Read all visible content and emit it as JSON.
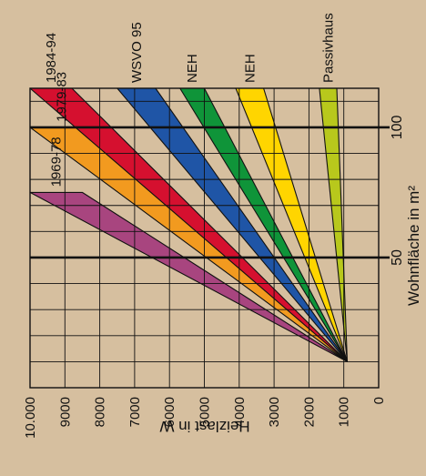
{
  "background_color": "#d6bf9f",
  "chart_data": {
    "type": "area",
    "orientation": "rotated 90° counter-clockwise (Wohnfläche axis runs vertically, Heizlast axis horizontally; text reads bottom-to-top)",
    "x_axis": {
      "label": "Wohnfläche in m²",
      "ticks": [
        50,
        100
      ],
      "range": [
        0,
        115
      ],
      "major_gridlines_at": [
        50,
        100
      ],
      "minor_gridline_step": 10
    },
    "y_axis": {
      "label": "Heizlast in W",
      "ticks": [
        0,
        1000,
        2000,
        3000,
        4000,
        5000,
        6000,
        7000,
        8000,
        9000,
        "10.000"
      ],
      "range": [
        0,
        10000
      ],
      "gridline_step": 1000
    },
    "grid": true,
    "series": [
      {
        "name": "1969-78",
        "color": "#a8457f",
        "low": [
          [
            10,
            900
          ],
          [
            75,
            8500
          ]
        ],
        "high": [
          [
            10,
            900
          ],
          [
            75,
            10000
          ]
        ]
      },
      {
        "name": "1979-83",
        "color": "#f29a1f",
        "low": [
          [
            10,
            900
          ],
          [
            100,
            8200
          ]
        ],
        "high": [
          [
            10,
            900
          ],
          [
            100,
            10000
          ]
        ]
      },
      {
        "name": "1984-94",
        "color": "#d5102f",
        "low": [
          [
            10,
            900
          ],
          [
            115,
            8800
          ]
        ],
        "high": [
          [
            10,
            900
          ],
          [
            115,
            10000
          ]
        ]
      },
      {
        "name": "WSVO 95",
        "color": "#1f55a6",
        "low": [
          [
            10,
            900
          ],
          [
            115,
            6400
          ]
        ],
        "high": [
          [
            10,
            900
          ],
          [
            115,
            7500
          ]
        ]
      },
      {
        "name": "NEH",
        "color": "#0f9439",
        "low": [
          [
            10,
            900
          ],
          [
            115,
            5000
          ]
        ],
        "high": [
          [
            10,
            900
          ],
          [
            115,
            5700
          ]
        ]
      },
      {
        "name": "NEH",
        "color": "#ffd500",
        "low": [
          [
            10,
            900
          ],
          [
            115,
            3300
          ]
        ],
        "high": [
          [
            10,
            900
          ],
          [
            115,
            4100
          ]
        ]
      },
      {
        "name": "Passivhaus",
        "color": "#b8c81c",
        "low": [
          [
            10,
            900
          ],
          [
            115,
            1200
          ]
        ],
        "high": [
          [
            10,
            900
          ],
          [
            115,
            1700
          ]
        ]
      }
    ]
  }
}
